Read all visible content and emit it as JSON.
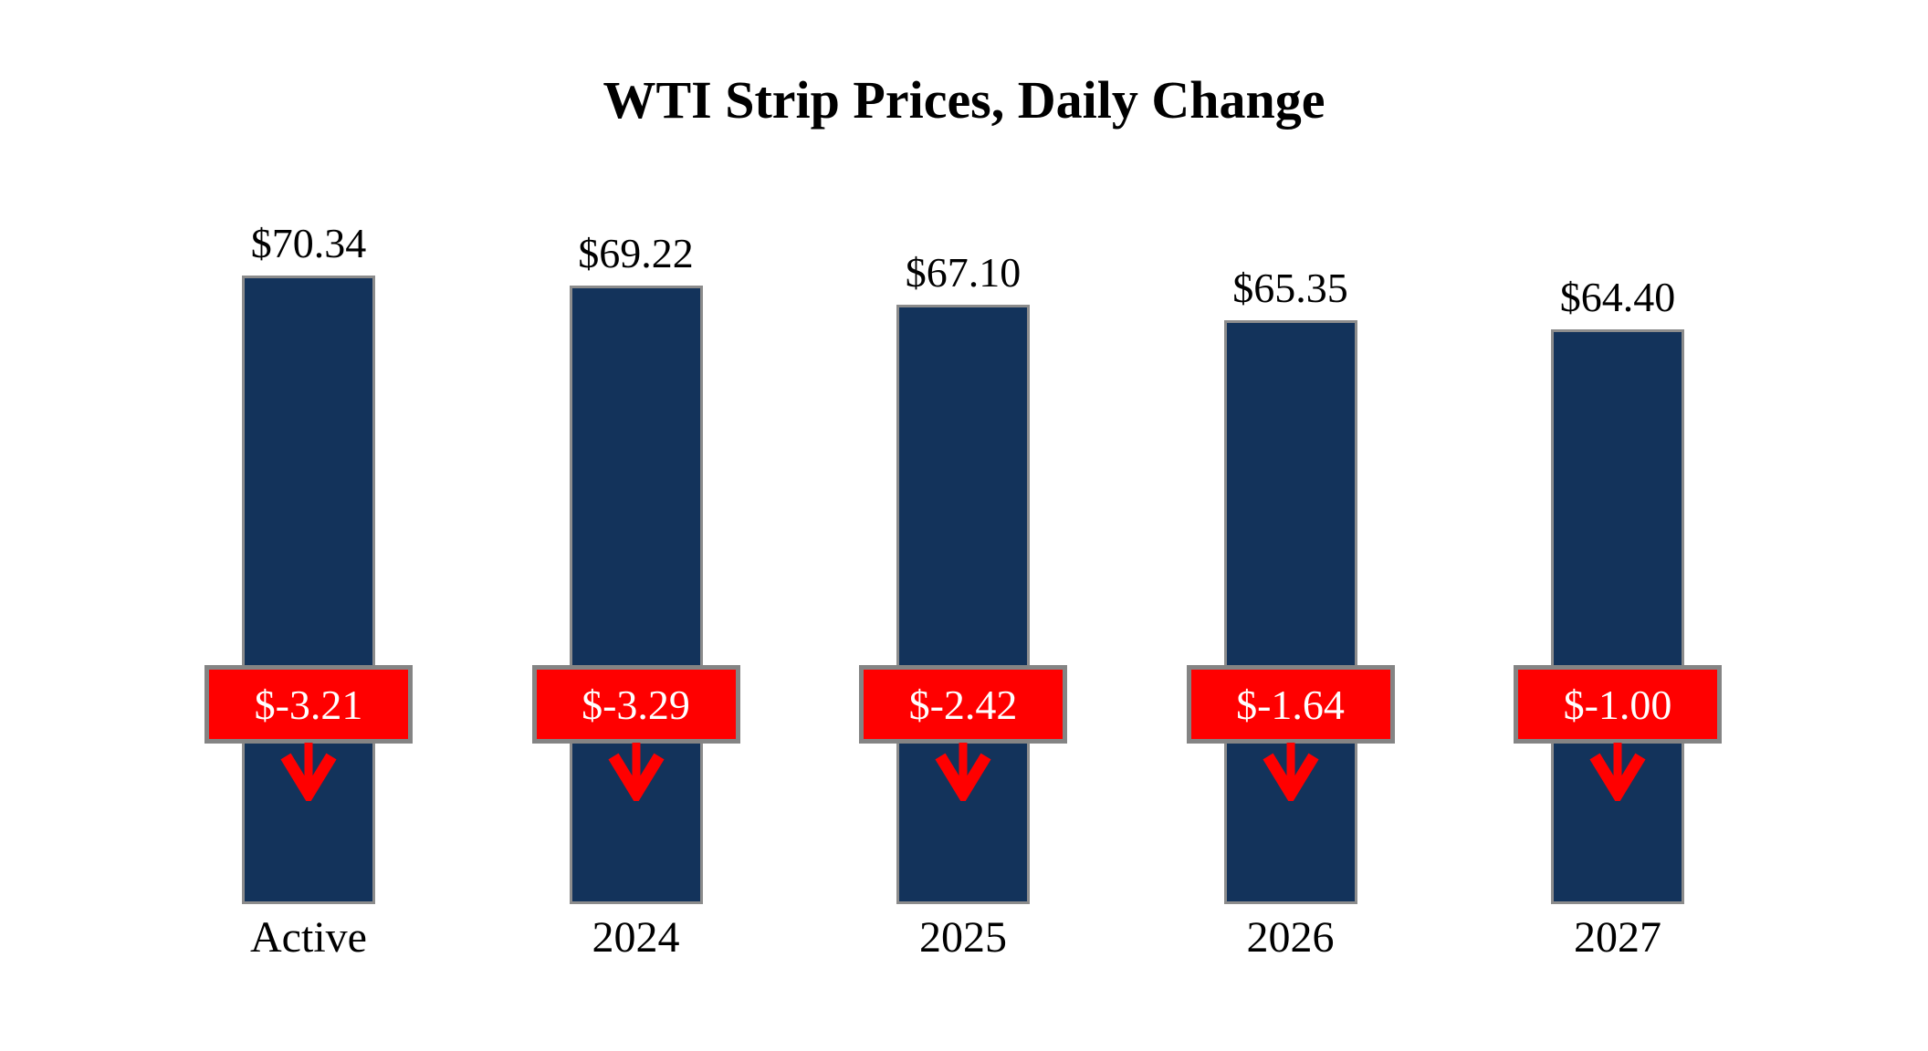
{
  "title": "WTI Strip Prices, Daily Change",
  "colors": {
    "bar_fill": "#13335B",
    "bar_border": "#8C8C8C",
    "change_fill": "#FF0000",
    "change_border": "#848484",
    "change_text": "#FFFFFF",
    "arrow": "#FF0000",
    "text": "#000000",
    "background": "#FFFFFF"
  },
  "chart_data": {
    "type": "bar",
    "title": "WTI Strip Prices, Daily Change",
    "categories": [
      "Active",
      "2024",
      "2025",
      "2026",
      "2027"
    ],
    "series": [
      {
        "name": "WTI strip price",
        "values": [
          70.34,
          69.22,
          67.1,
          65.35,
          64.4
        ],
        "labels": [
          "$70.34",
          "$69.22",
          "$67.10",
          "$65.35",
          "$64.40"
        ]
      },
      {
        "name": "Daily change",
        "values": [
          -3.21,
          -3.29,
          -2.42,
          -1.64,
          -1.0
        ],
        "labels": [
          "$-3.21",
          "$-3.29",
          "$-2.42",
          "$-1.64",
          "$-1.00"
        ]
      }
    ],
    "xlabel": "",
    "ylabel": "",
    "ylim": [
      0,
      80
    ],
    "grid": false,
    "legend": "none",
    "annotations": "red change boxes with downward red arrows overlaid on each bar"
  }
}
